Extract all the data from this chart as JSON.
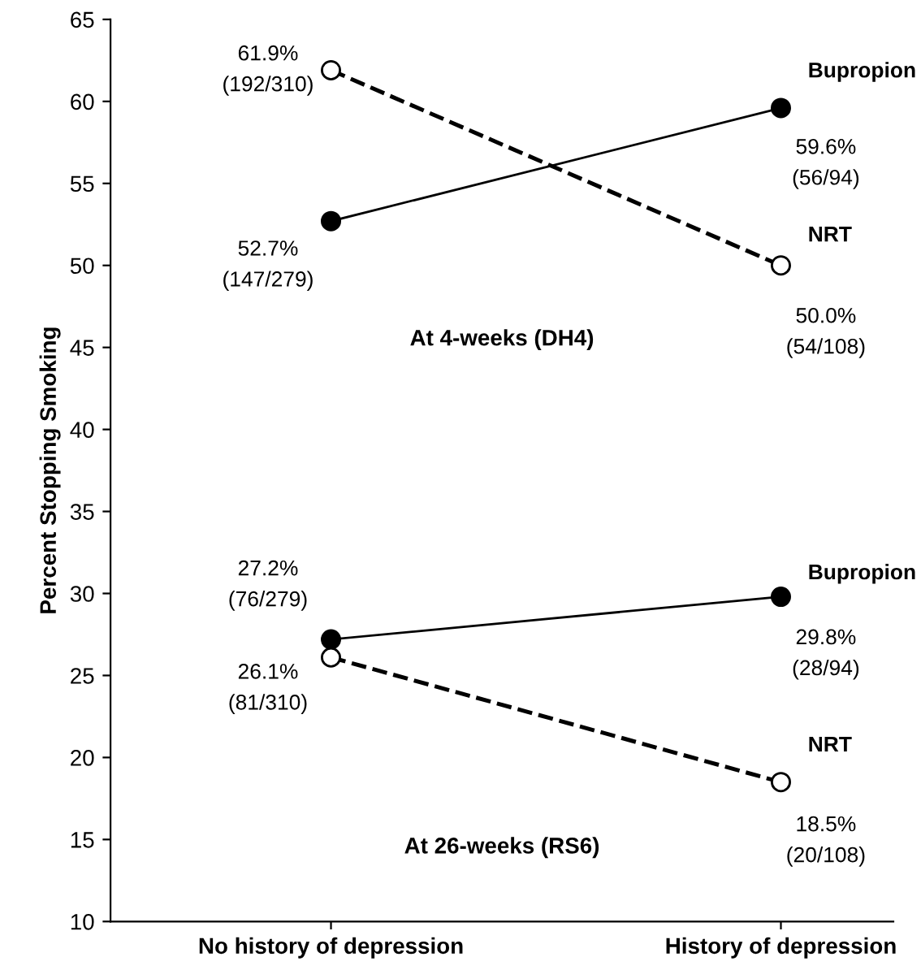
{
  "chart_data": {
    "type": "line",
    "ylabel": "Percent Stopping Smoking",
    "categories": [
      "No history of depression",
      "History of depression"
    ],
    "series": [
      {
        "name": "Bupropion",
        "color": "#000000",
        "line_style": "solid",
        "values": [
          52.7,
          59.6
        ],
        "value_labels": [
          "52.7%\n(147/279)",
          "59.6%\n(56/94)"
        ]
      },
      {
        "name": "NRT",
        "color": "#000000",
        "line_style": "dashed",
        "values": [
          61.9,
          50.0
        ],
        "value_labels": [
          "61.9%\n(192/310)",
          "50.0%\n(54/108)"
        ]
      },
      {
        "name": "Bupropion",
        "color": "#000000",
        "line_style": "solid",
        "values": [
          27.2,
          29.8
        ],
        "value_labels": [
          "27.2%\n(76/279)",
          "29.8%\n(28/94)"
        ]
      },
      {
        "name": "NRT",
        "color": "#000000",
        "line_style": "dashed",
        "values": [
          26.1,
          18.5
        ],
        "value_labels": [
          "26.1%\n(81/310)",
          "18.5%\n(20/108)"
        ]
      }
    ],
    "marker": "circle",
    "annotations": [
      "At 4-weeks (DH4)",
      "At 26-weeks (RS6)"
    ],
    "ylim": [
      10,
      65
    ],
    "yticks": [
      10,
      15,
      20,
      25,
      30,
      35,
      40,
      45,
      50,
      55,
      60,
      65
    ],
    "grid": false,
    "legend": false
  }
}
